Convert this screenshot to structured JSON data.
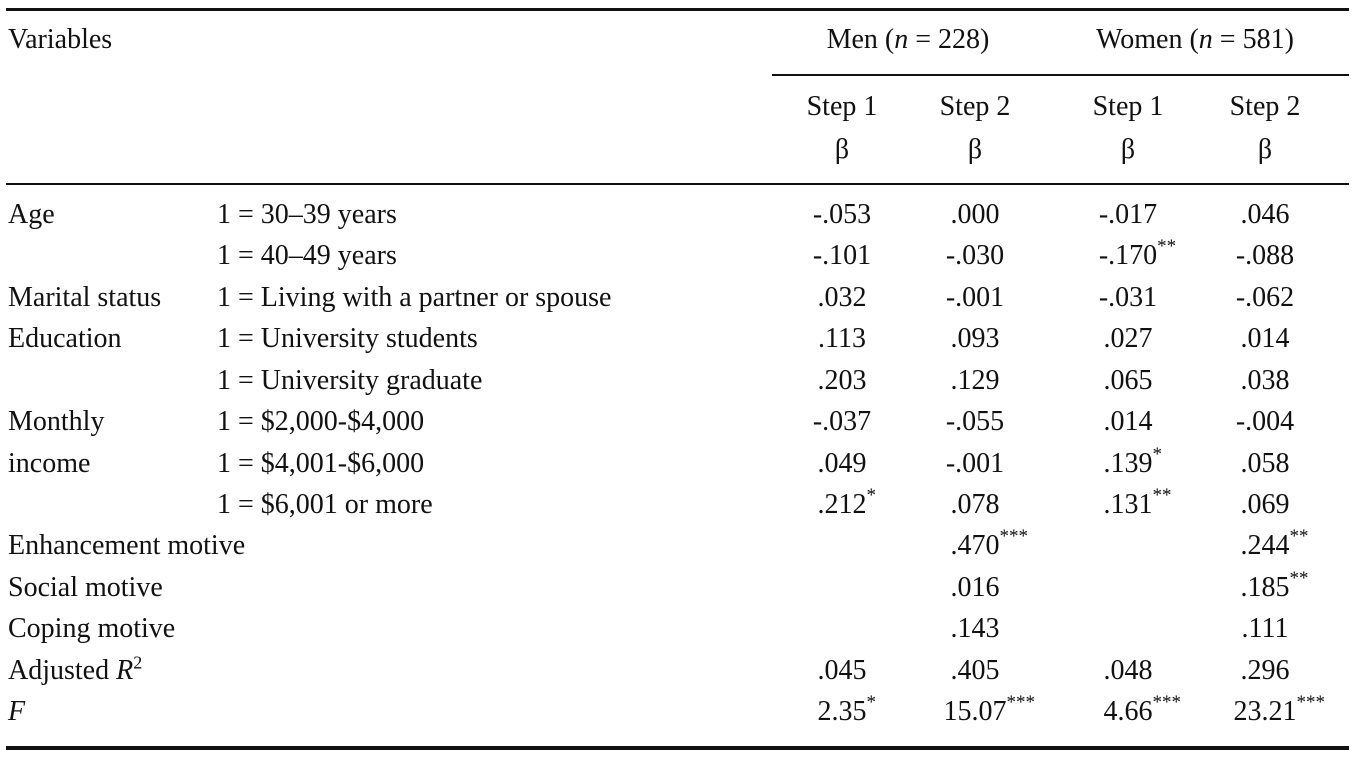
{
  "table": {
    "header": {
      "variables": "Variables",
      "groups": [
        {
          "pre": "Men (",
          "italic": "n",
          "post": " = 228)"
        },
        {
          "pre": "Women (",
          "italic": "n",
          "post": " = 581)"
        }
      ],
      "columns": [
        {
          "step": "Step 1",
          "stat": "β"
        },
        {
          "step": "Step 2",
          "stat": "β"
        },
        {
          "step": "Step 1",
          "stat": "β"
        },
        {
          "step": "Step 2",
          "stat": "β"
        }
      ]
    },
    "rows": [
      {
        "variable": "Age",
        "level": "1 = 30–39 years",
        "cells": [
          {
            "value": "-.053"
          },
          {
            "value": ".000"
          },
          {
            "value": "-.017"
          },
          {
            "value": ".046"
          }
        ]
      },
      {
        "level": "1 = 40–49 years",
        "cells": [
          {
            "value": "-.101"
          },
          {
            "value": "-.030"
          },
          {
            "value": "-.170",
            "sig": "**"
          },
          {
            "value": "-.088"
          }
        ]
      },
      {
        "variable": "Marital status",
        "level": "1 = Living with a partner or spouse",
        "cells": [
          {
            "value": ".032"
          },
          {
            "value": "-.001"
          },
          {
            "value": "-.031"
          },
          {
            "value": "-.062"
          }
        ]
      },
      {
        "variable": "Education",
        "level": "1 = University students",
        "cells": [
          {
            "value": ".113"
          },
          {
            "value": ".093"
          },
          {
            "value": ".027"
          },
          {
            "value": ".014"
          }
        ]
      },
      {
        "level": "1 = University graduate",
        "cells": [
          {
            "value": ".203"
          },
          {
            "value": ".129"
          },
          {
            "value": ".065"
          },
          {
            "value": ".038"
          }
        ]
      },
      {
        "variable": "Monthly",
        "level": "1 = $2,000-$4,000",
        "cells": [
          {
            "value": "-.037"
          },
          {
            "value": "-.055"
          },
          {
            "value": ".014"
          },
          {
            "value": "-.004"
          }
        ]
      },
      {
        "variable": "income",
        "level": "1 = $4,001-$6,000",
        "cells": [
          {
            "value": ".049"
          },
          {
            "value": "-.001"
          },
          {
            "value": ".139",
            "sig": "*"
          },
          {
            "value": ".058"
          }
        ]
      },
      {
        "level": "1 = $6,001 or more",
        "cells": [
          {
            "value": ".212",
            "sig": "*"
          },
          {
            "value": ".078"
          },
          {
            "value": ".131",
            "sig": "**"
          },
          {
            "value": ".069"
          }
        ]
      },
      {
        "variable": "Enhancement motive",
        "cells": [
          null,
          {
            "value": ".470",
            "sig": "***"
          },
          null,
          {
            "value": ".244",
            "sig": "**"
          }
        ]
      },
      {
        "variable": "Social motive",
        "cells": [
          null,
          {
            "value": ".016"
          },
          null,
          {
            "value": ".185",
            "sig": "**"
          }
        ]
      },
      {
        "variable": "Coping motive",
        "cells": [
          null,
          {
            "value": ".143"
          },
          null,
          {
            "value": ".111"
          }
        ]
      },
      {
        "variable": {
          "pre": "Adjusted ",
          "italic": "R",
          "sup": "2"
        },
        "cells": [
          {
            "value": ".045"
          },
          {
            "value": ".405"
          },
          {
            "value": ".048"
          },
          {
            "value": ".296"
          }
        ]
      },
      {
        "variable": {
          "italic": "F"
        },
        "cells": [
          {
            "value": "2.35",
            "sig": "*"
          },
          {
            "value": "15.07",
            "sig": "***"
          },
          {
            "value": "4.66",
            "sig": "***"
          },
          {
            "value": "23.21",
            "sig": "***"
          }
        ]
      }
    ]
  }
}
